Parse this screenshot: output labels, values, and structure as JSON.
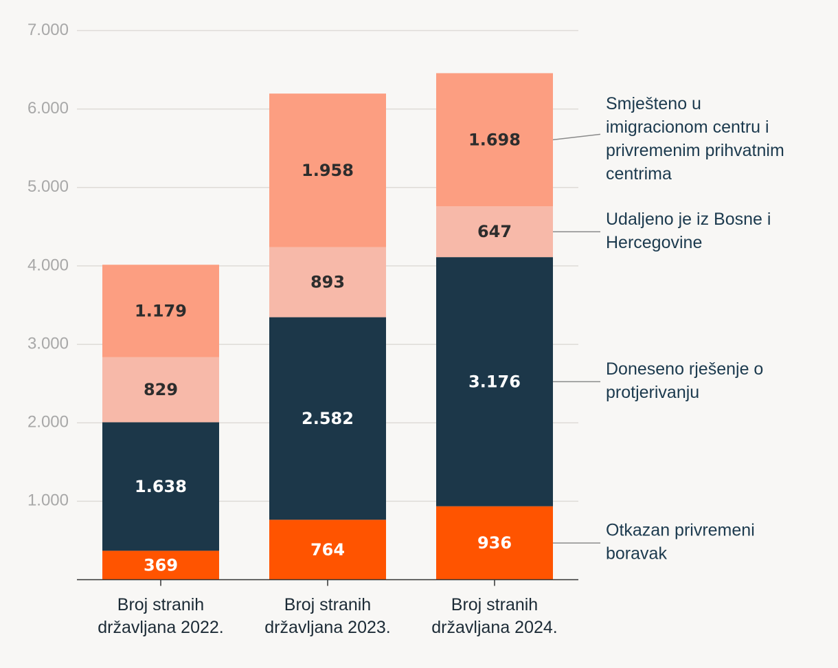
{
  "chart_data": {
    "type": "bar",
    "stacked": true,
    "categories": [
      [
        "Broj stranih",
        "državljana 2022."
      ],
      [
        "Broj stranih",
        "državljana 2023."
      ],
      [
        "Broj stranih",
        "državljana 2024."
      ]
    ],
    "series": [
      {
        "name": "Otkazan privremeni boravak",
        "legend_lines": [
          "Otkazan privremeni",
          "boravak"
        ],
        "color": "#ff5400",
        "label_color": "#ffffff",
        "values": [
          369,
          764,
          936
        ],
        "value_labels": [
          "369",
          "764",
          "936"
        ]
      },
      {
        "name": "Doneseno rješenje o protjerivanju",
        "legend_lines": [
          "Doneseno rješenje o",
          "protjerivanju"
        ],
        "color": "#1c3749",
        "label_color": "#ffffff",
        "values": [
          1638,
          2582,
          3176
        ],
        "value_labels": [
          "1.638",
          "2.582",
          "3.176"
        ]
      },
      {
        "name": "Udaljeno je iz Bosne i Hercegovine",
        "legend_lines": [
          "Udaljeno je iz Bosne i",
          "Hercegovine"
        ],
        "color": "#f7b9a9",
        "label_color": "#2d2d2d",
        "values": [
          829,
          893,
          647
        ],
        "value_labels": [
          "829",
          "893",
          "647"
        ]
      },
      {
        "name": "Smješteno u imigracionom centru i privremenim prihvatnim centrima",
        "legend_lines": [
          "Smješteno u",
          "imigracionom centru i",
          "privremenim prihvatnim",
          "centrima"
        ],
        "color": "#fc9e81",
        "label_color": "#2d2d2d",
        "values": [
          1179,
          1958,
          1698
        ],
        "value_labels": [
          "1.179",
          "1.958",
          "1.698"
        ]
      }
    ],
    "yticks": [
      {
        "value": 1000,
        "label": "1.000"
      },
      {
        "value": 2000,
        "label": "2.000"
      },
      {
        "value": 3000,
        "label": "3.000"
      },
      {
        "value": 4000,
        "label": "4.000"
      },
      {
        "value": 5000,
        "label": "5.000"
      },
      {
        "value": 6000,
        "label": "6.000"
      },
      {
        "value": 7000,
        "label": "7.000"
      }
    ],
    "ylim": [
      0,
      7000
    ],
    "grid": true,
    "legend_position": "right, inline with 2024 bar"
  }
}
